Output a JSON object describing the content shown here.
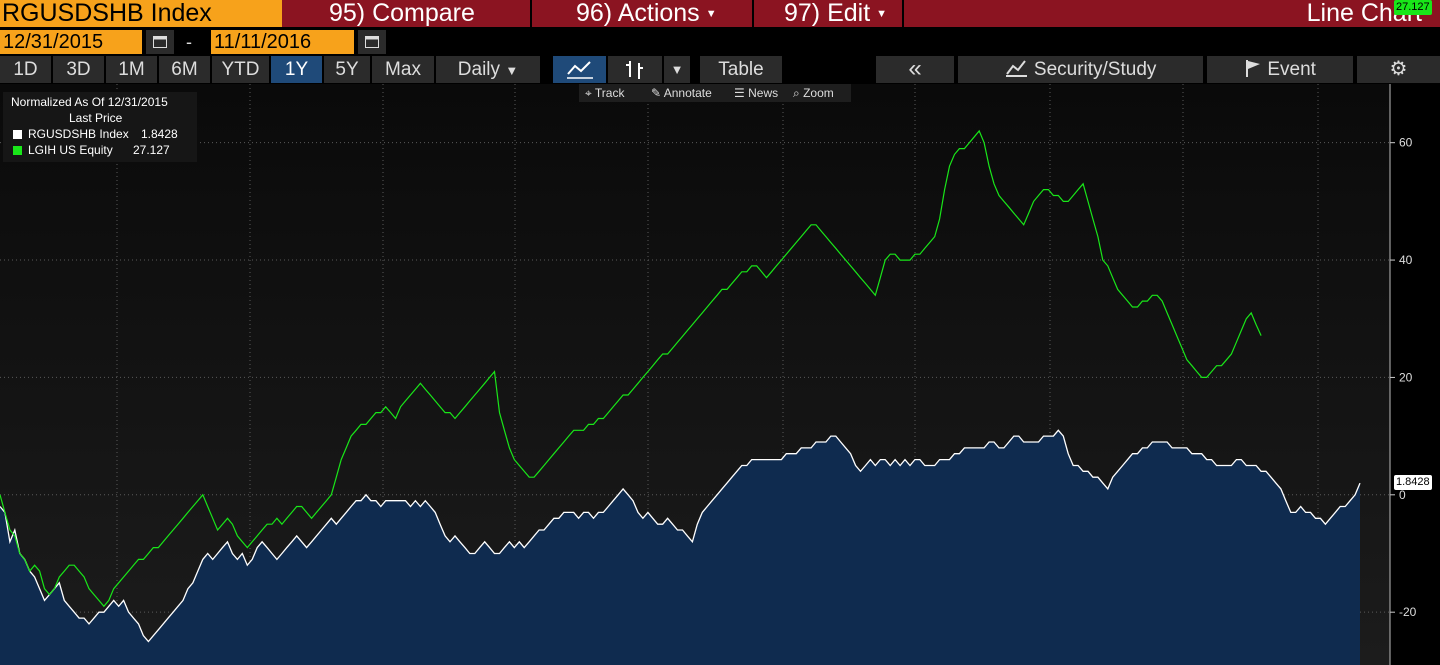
{
  "header": {
    "ticker": "RGUSDSHB Index",
    "compare": "95) Compare",
    "actions": "96) Actions",
    "edit": "97) Edit",
    "chart_title": "Line Chart"
  },
  "date_range": {
    "start": "12/31/2015",
    "separator": "-",
    "end": "11/11/2016"
  },
  "toolbar": {
    "periods": [
      "1D",
      "3D",
      "1M",
      "6M",
      "YTD",
      "1Y",
      "5Y",
      "Max"
    ],
    "active_period": "1Y",
    "frequency": "Daily",
    "table_label": "Table",
    "collapse_label": "«",
    "security_study_label": "Security/Study",
    "event_label": "Event"
  },
  "mini_toolbar": {
    "track": "Track",
    "annotate": "Annotate",
    "news": "News",
    "zoom": "Zoom"
  },
  "legend": {
    "title": "Normalized As Of 12/31/2015",
    "subtitle": "Last Price",
    "items": [
      {
        "name": "RGUSDSHB Index",
        "value": "1.8428",
        "color": "#ffffff"
      },
      {
        "name": "LGIH US Equity",
        "value": "27.127",
        "color": "#19e619"
      }
    ]
  },
  "colors": {
    "accent_orange": "#f7a21b",
    "header_red": "#8b1421",
    "active_blue": "#1f4a79",
    "area_fill": "#0f2b4f",
    "series_green": "#19e619"
  },
  "chart_data": {
    "type": "line",
    "ylim": [
      -29,
      70
    ],
    "yticks": [
      60,
      40,
      20,
      0,
      -20
    ],
    "ytick_labels": [
      "60",
      "40",
      "20",
      "0",
      "-20"
    ],
    "grid": true,
    "legend_position": "top-left",
    "series": [
      {
        "name": "RGUSDSHB Index",
        "style": "area",
        "color": "#ffffff",
        "last_value_label": "1.8428",
        "values": [
          -2,
          -3,
          -8,
          -6,
          -10,
          -11,
          -13,
          -14,
          -16,
          -18,
          -17,
          -16,
          -15,
          -18,
          -19,
          -20,
          -21,
          -21,
          -22,
          -21,
          -20,
          -20,
          -19,
          -18,
          -19,
          -18,
          -20,
          -21,
          -22,
          -24,
          -25,
          -24,
          -23,
          -22,
          -21,
          -20,
          -19,
          -18,
          -16,
          -15,
          -13,
          -11,
          -10,
          -11,
          -10,
          -9,
          -8,
          -10,
          -11,
          -10,
          -12,
          -11,
          -9,
          -8,
          -9,
          -10,
          -11,
          -10,
          -9,
          -8,
          -7,
          -8,
          -9,
          -8,
          -7,
          -6,
          -5,
          -4,
          -5,
          -4,
          -3,
          -2,
          -1,
          -1,
          0,
          -1,
          -1,
          -2,
          -1,
          -1,
          -1,
          -1,
          -1,
          -2,
          -1,
          -2,
          -1,
          -2,
          -3,
          -5,
          -7,
          -8,
          -7,
          -8,
          -9,
          -10,
          -10,
          -9,
          -8,
          -9,
          -10,
          -10,
          -9,
          -8,
          -9,
          -8,
          -9,
          -8,
          -7,
          -6,
          -6,
          -5,
          -4,
          -4,
          -3,
          -3,
          -3,
          -4,
          -3,
          -3,
          -4,
          -3,
          -3,
          -2,
          -1,
          0,
          1,
          0,
          -1,
          -3,
          -4,
          -3,
          -4,
          -5,
          -5,
          -4,
          -5,
          -6,
          -6,
          -7,
          -8,
          -5,
          -3,
          -2,
          -1,
          0,
          1,
          2,
          3,
          4,
          5,
          5,
          6,
          6,
          6,
          6,
          6,
          6,
          6,
          7,
          7,
          7,
          8,
          8,
          8,
          9,
          9,
          9,
          10,
          10,
          9,
          8,
          7,
          5,
          4,
          5,
          6,
          5,
          6,
          6,
          5,
          6,
          5,
          6,
          5,
          6,
          6,
          5,
          5,
          5,
          6,
          6,
          6,
          7,
          7,
          8,
          8,
          8,
          8,
          8,
          9,
          9,
          8,
          8,
          9,
          10,
          10,
          9,
          9,
          9,
          9,
          10,
          10,
          10,
          11,
          10,
          7,
          5,
          5,
          4,
          4,
          3,
          3,
          2,
          1,
          3,
          4,
          5,
          6,
          7,
          7,
          8,
          8,
          9,
          9,
          9,
          9,
          8,
          8,
          8,
          8,
          7,
          7,
          7,
          6,
          6,
          5,
          5,
          5,
          5,
          6,
          6,
          5,
          5,
          5,
          4,
          4,
          3,
          2,
          1,
          -1,
          -3,
          -3,
          -2,
          -3,
          -3,
          -4,
          -4,
          -5,
          -4,
          -3,
          -2,
          -2,
          -1,
          0,
          2
        ]
      },
      {
        "name": "LGIH US Equity",
        "style": "line",
        "color": "#19e619",
        "last_value_label": "27.127",
        "values": [
          0,
          -3,
          -6,
          -7,
          -10,
          -11,
          -13,
          -12,
          -13,
          -16,
          -17,
          -16,
          -14,
          -13,
          -12,
          -12,
          -13,
          -14,
          -16,
          -17,
          -18,
          -19,
          -18,
          -16,
          -15,
          -14,
          -13,
          -12,
          -11,
          -11,
          -10,
          -9,
          -9,
          -8,
          -7,
          -6,
          -5,
          -4,
          -3,
          -2,
          -1,
          0,
          -2,
          -4,
          -6,
          -5,
          -4,
          -5,
          -7,
          -8,
          -9,
          -8,
          -7,
          -6,
          -5,
          -5,
          -4,
          -5,
          -4,
          -3,
          -2,
          -2,
          -3,
          -4,
          -3,
          -2,
          -1,
          0,
          3,
          6,
          8,
          10,
          11,
          12,
          12,
          13,
          14,
          14,
          15,
          14,
          13,
          15,
          16,
          17,
          18,
          19,
          18,
          17,
          16,
          15,
          14,
          14,
          13,
          14,
          15,
          16,
          17,
          18,
          19,
          20,
          21,
          14,
          11,
          8,
          6,
          5,
          4,
          3,
          3,
          4,
          5,
          6,
          7,
          8,
          9,
          10,
          11,
          11,
          11,
          12,
          12,
          13,
          13,
          14,
          15,
          16,
          17,
          17,
          18,
          19,
          20,
          21,
          22,
          23,
          24,
          24,
          25,
          26,
          27,
          28,
          29,
          30,
          31,
          32,
          33,
          34,
          35,
          35,
          36,
          37,
          38,
          38,
          39,
          39,
          38,
          37,
          38,
          39,
          40,
          41,
          42,
          43,
          44,
          45,
          46,
          46,
          45,
          44,
          43,
          42,
          41,
          40,
          39,
          38,
          37,
          36,
          35,
          34,
          37,
          40,
          41,
          41,
          40,
          40,
          40,
          41,
          41,
          42,
          43,
          44,
          47,
          52,
          56,
          58,
          59,
          59,
          60,
          61,
          62,
          60,
          56,
          53,
          51,
          50,
          49,
          48,
          47,
          46,
          48,
          50,
          51,
          52,
          52,
          51,
          51,
          50,
          50,
          51,
          52,
          53,
          50,
          47,
          44,
          40,
          39,
          37,
          35,
          34,
          33,
          32,
          32,
          33,
          33,
          34,
          34,
          33,
          31,
          29,
          27,
          25,
          23,
          22,
          21,
          20,
          20,
          21,
          22,
          22,
          23,
          24,
          26,
          28,
          30,
          31,
          29,
          27.127
        ]
      }
    ]
  }
}
